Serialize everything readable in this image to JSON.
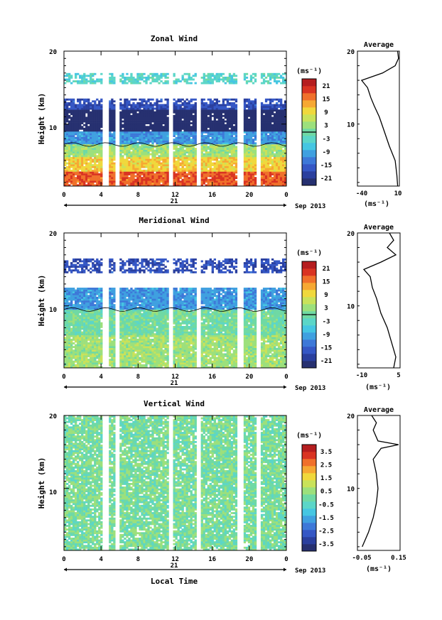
{
  "colors": {
    "palette": [
      "#263070",
      "#2a3f9e",
      "#3557c5",
      "#3d78d8",
      "#3fa0e0",
      "#45c6e2",
      "#5bd6c8",
      "#6fd9a4",
      "#9ce07c",
      "#c9e25a",
      "#f0d83c",
      "#f6a833",
      "#f0702b",
      "#d93322",
      "#b51d1f"
    ],
    "axis": "#000000",
    "contour": "#000000",
    "blank": "#ffffff"
  },
  "shared": {
    "date_label": "Sep 2013",
    "day_label": "21",
    "x_ticks": [
      "0",
      "4",
      "8",
      "12",
      "16",
      "20",
      "0"
    ],
    "xlabel": "Local Time",
    "ylabel": "Height (km)",
    "y_ticks": [
      "20",
      "10"
    ],
    "unit_label": "(ms⁻¹)",
    "avg_title": "Average",
    "avg_unit": "(ms⁻¹)"
  },
  "chart_data": [
    {
      "type": "heatmap",
      "title": "Zonal Wind",
      "x": {
        "range_hours": [
          0,
          24
        ],
        "ticks_hours": [
          0,
          4,
          8,
          12,
          16,
          20,
          24
        ]
      },
      "y": {
        "range_km": [
          1.5,
          20
        ],
        "ticks_km": [
          20,
          10
        ]
      },
      "colorbar": {
        "ticks": [
          "21",
          "15",
          "9",
          "3",
          "-3",
          "-9",
          "-15",
          "-21"
        ],
        "zero_line": true
      },
      "data_gaps_hours": [
        [
          4.2,
          4.8
        ],
        [
          5.6,
          6.0
        ],
        [
          11.3,
          11.8
        ],
        [
          14.3,
          14.7
        ],
        [
          18.8,
          19.3
        ],
        [
          20.8,
          21.3
        ]
      ],
      "valid_height_km": [
        1.5,
        17.0
      ],
      "structure": [
        {
          "from_km": 1.5,
          "to_km": 3.5,
          "value": 15
        },
        {
          "from_km": 3.5,
          "to_km": 5.5,
          "value": 9
        },
        {
          "from_km": 5.5,
          "to_km": 7.2,
          "value": 3
        },
        {
          "from_km": 7.2,
          "to_km": 9.0,
          "value": -9
        },
        {
          "from_km": 9.0,
          "to_km": 12.0,
          "value": -21
        },
        {
          "from_km": 12.0,
          "to_km": 13.5,
          "value": -15
        },
        {
          "from_km": 15.5,
          "to_km": 17.0,
          "value": -3
        }
      ],
      "average": {
        "xlim": [
          -40,
          10
        ],
        "x_ticks": [
          "-40",
          "10"
        ],
        "y_ticks": [
          "20",
          "10"
        ],
        "profile": [
          [
            8,
            1.5
          ],
          [
            7,
            3
          ],
          [
            5,
            5
          ],
          [
            -2,
            7
          ],
          [
            -8,
            9
          ],
          [
            -14,
            11
          ],
          [
            -20,
            12.5
          ],
          [
            -24,
            13.6
          ],
          [
            -28,
            15
          ],
          [
            -35,
            16
          ],
          [
            -10,
            17
          ],
          [
            5,
            18
          ],
          [
            9,
            19
          ],
          [
            8,
            20
          ]
        ]
      }
    },
    {
      "type": "heatmap",
      "title": "Meridional Wind",
      "x": {
        "range_hours": [
          0,
          24
        ],
        "ticks_hours": [
          0,
          4,
          8,
          12,
          16,
          20,
          24
        ]
      },
      "y": {
        "range_km": [
          1.5,
          20
        ],
        "ticks_km": [
          20,
          10
        ]
      },
      "colorbar": {
        "ticks": [
          "21",
          "15",
          "9",
          "3",
          "-3",
          "-9",
          "-15",
          "-21"
        ],
        "zero_line": true
      },
      "data_gaps_hours": [
        [
          4.2,
          4.8
        ],
        [
          5.6,
          6.0
        ],
        [
          11.3,
          11.8
        ],
        [
          14.3,
          14.7
        ],
        [
          18.8,
          19.3
        ],
        [
          20.8,
          21.3
        ]
      ],
      "valid_height_km": [
        1.5,
        16.5
      ],
      "structure": [
        {
          "from_km": 1.5,
          "to_km": 6.0,
          "value": 3
        },
        {
          "from_km": 6.0,
          "to_km": 9.5,
          "value": 0
        },
        {
          "from_km": 9.5,
          "to_km": 12.5,
          "value": -9
        },
        {
          "from_km": 14.5,
          "to_km": 16.5,
          "value": -15
        }
      ],
      "average": {
        "xlim": [
          -15,
          5
        ],
        "x_ticks": [
          "-10",
          "5"
        ],
        "y_ticks": [
          "20",
          "10"
        ],
        "profile": [
          [
            2,
            1.5
          ],
          [
            3,
            3
          ],
          [
            1,
            5
          ],
          [
            -1,
            7
          ],
          [
            -4,
            9
          ],
          [
            -6,
            11
          ],
          [
            -8,
            12.5
          ],
          [
            -9,
            14
          ],
          [
            -12,
            15
          ],
          [
            -4,
            16
          ],
          [
            3,
            17
          ],
          [
            -1,
            18
          ],
          [
            2,
            19
          ],
          [
            0,
            20
          ]
        ]
      }
    },
    {
      "type": "heatmap",
      "title": "Vertical Wind",
      "x": {
        "range_hours": [
          0,
          24
        ],
        "ticks_hours": [
          0,
          4,
          8,
          12,
          16,
          20,
          24
        ]
      },
      "y": {
        "range_km": [
          1.5,
          20
        ],
        "ticks_km": [
          20,
          10
        ]
      },
      "colorbar": {
        "ticks": [
          "3.5",
          "2.5",
          "1.5",
          "0.5",
          "-0.5",
          "-1.5",
          "-2.5",
          "-3.5"
        ],
        "zero_line": false
      },
      "data_gaps_hours": [
        [
          4.2,
          4.8
        ],
        [
          5.6,
          6.0
        ],
        [
          11.3,
          11.8
        ],
        [
          14.3,
          14.7
        ],
        [
          18.8,
          19.3
        ],
        [
          20.8,
          21.3
        ]
      ],
      "valid_height_km": [
        1.5,
        20.0
      ],
      "structure": [
        {
          "from_km": 1.5,
          "to_km": 20,
          "value": 0.1
        }
      ],
      "average": {
        "xlim": [
          -0.1,
          0.17
        ],
        "x_ticks": [
          "-0.05",
          "0.15"
        ],
        "y_ticks": [
          "20",
          "10"
        ],
        "profile": [
          [
            -0.07,
            2
          ],
          [
            -0.03,
            4
          ],
          [
            0.0,
            6
          ],
          [
            0.02,
            8
          ],
          [
            0.03,
            10
          ],
          [
            0.02,
            12
          ],
          [
            0.0,
            14
          ],
          [
            0.05,
            15.5
          ],
          [
            0.16,
            16
          ],
          [
            0.03,
            16.5
          ],
          [
            0.0,
            18
          ],
          [
            0.02,
            19
          ],
          [
            -0.01,
            20
          ]
        ]
      }
    }
  ]
}
